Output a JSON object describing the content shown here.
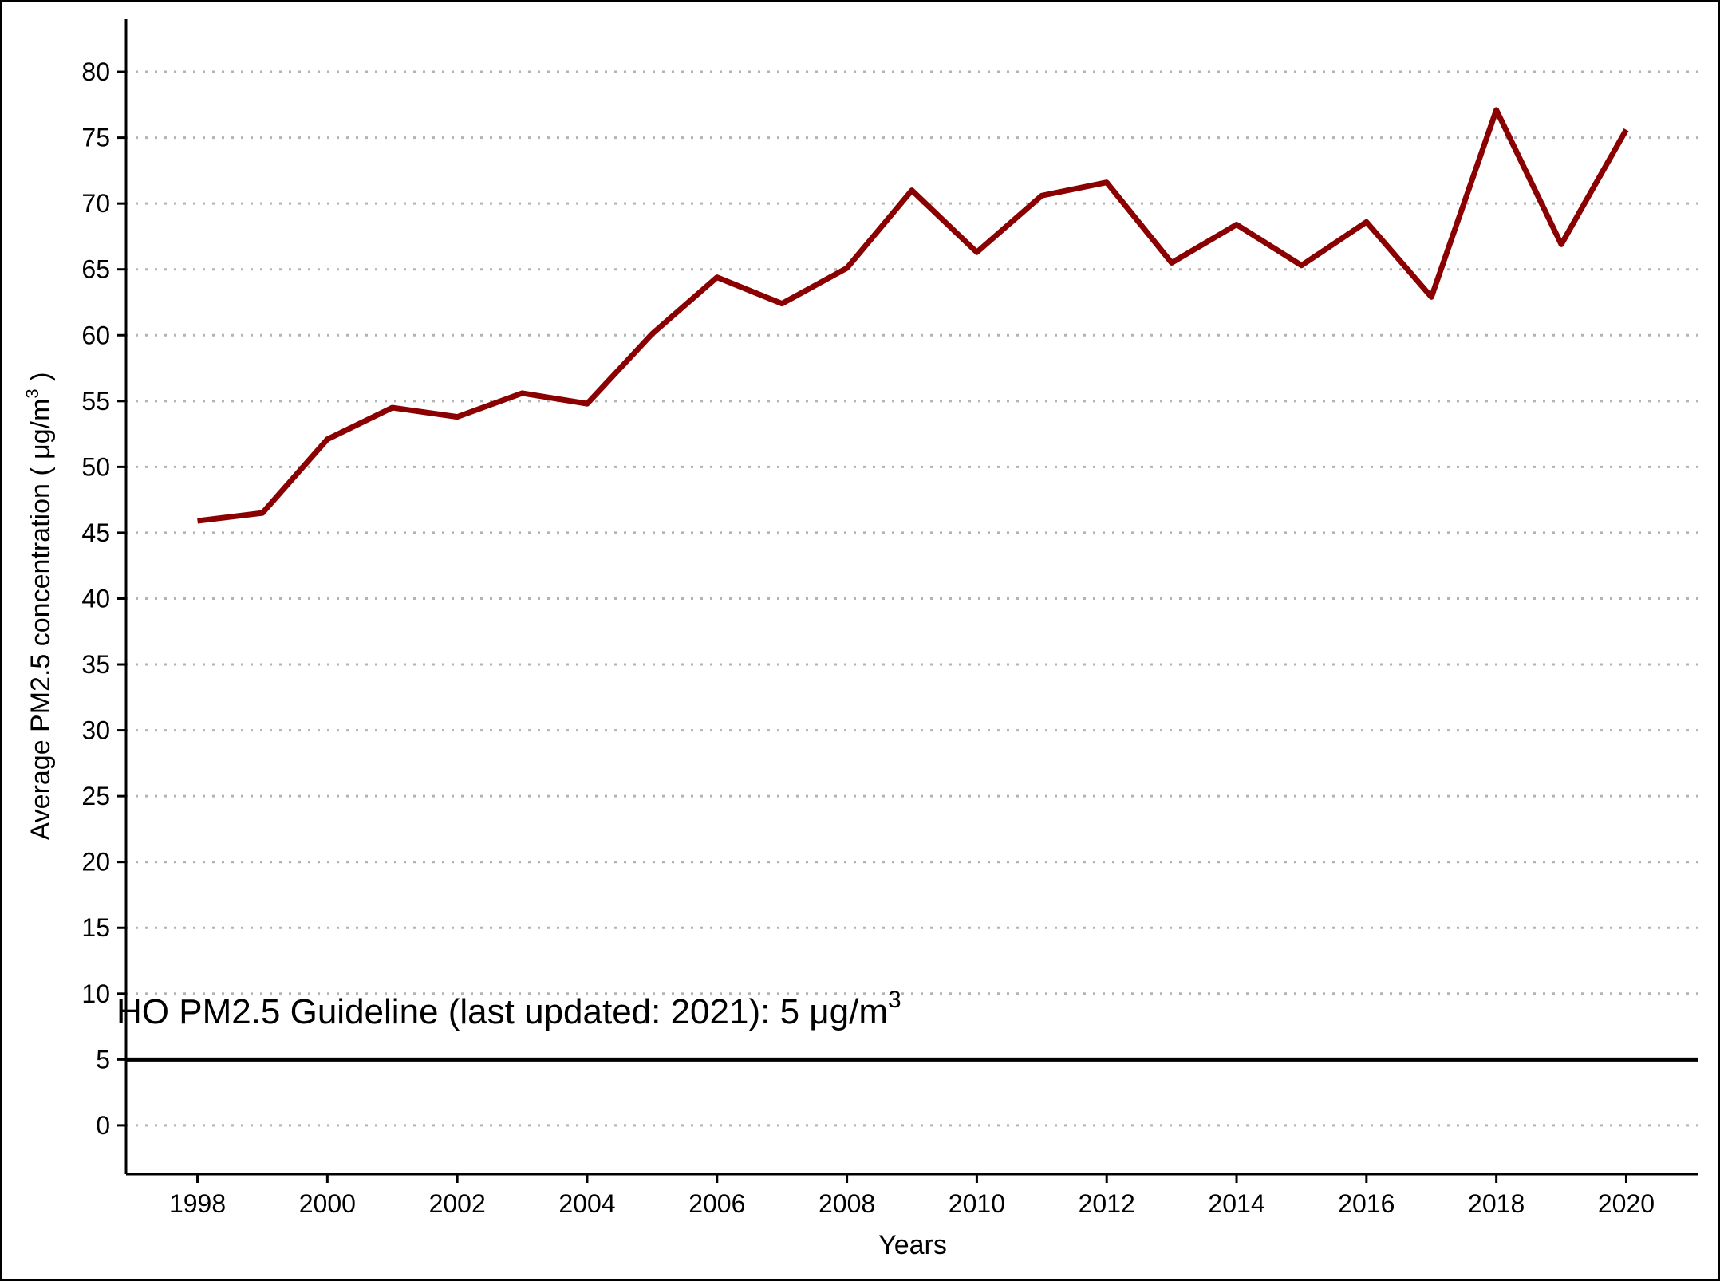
{
  "chart_data": {
    "type": "line",
    "xlabel": "Years",
    "ylabel": "Average PM2.5 concentration ( μg/m",
    "ylabel_superscript": "3",
    "ylabel_suffix": " )",
    "xlim": [
      1996.9,
      2021.1
    ],
    "ylim": [
      -3.7,
      84
    ],
    "x_ticks": [
      1998,
      2000,
      2002,
      2004,
      2006,
      2008,
      2010,
      2012,
      2014,
      2016,
      2018,
      2020
    ],
    "y_ticks": [
      0,
      5,
      10,
      15,
      20,
      25,
      30,
      35,
      40,
      45,
      50,
      55,
      60,
      65,
      70,
      75,
      80
    ],
    "grid": "horizontal-dotted",
    "series": [
      {
        "color": "#8b0000",
        "x": [
          1998,
          1999,
          2000,
          2001,
          2002,
          2003,
          2004,
          2005,
          2006,
          2007,
          2008,
          2009,
          2010,
          2011,
          2012,
          2013,
          2014,
          2015,
          2016,
          2017,
          2018,
          2019,
          2020
        ],
        "values": [
          45.9,
          46.5,
          52.1,
          54.5,
          53.8,
          55.6,
          54.8,
          60.1,
          64.4,
          62.4,
          65.1,
          71.0,
          66.3,
          70.6,
          71.6,
          65.5,
          68.4,
          65.3,
          68.6,
          62.9,
          77.1,
          66.9,
          75.6
        ]
      }
    ],
    "reference_line": {
      "y": 5,
      "color": "#000000",
      "label": "HO PM2.5 Guideline (last updated: 2021): 5 μg/m",
      "label_superscript": "3"
    }
  }
}
